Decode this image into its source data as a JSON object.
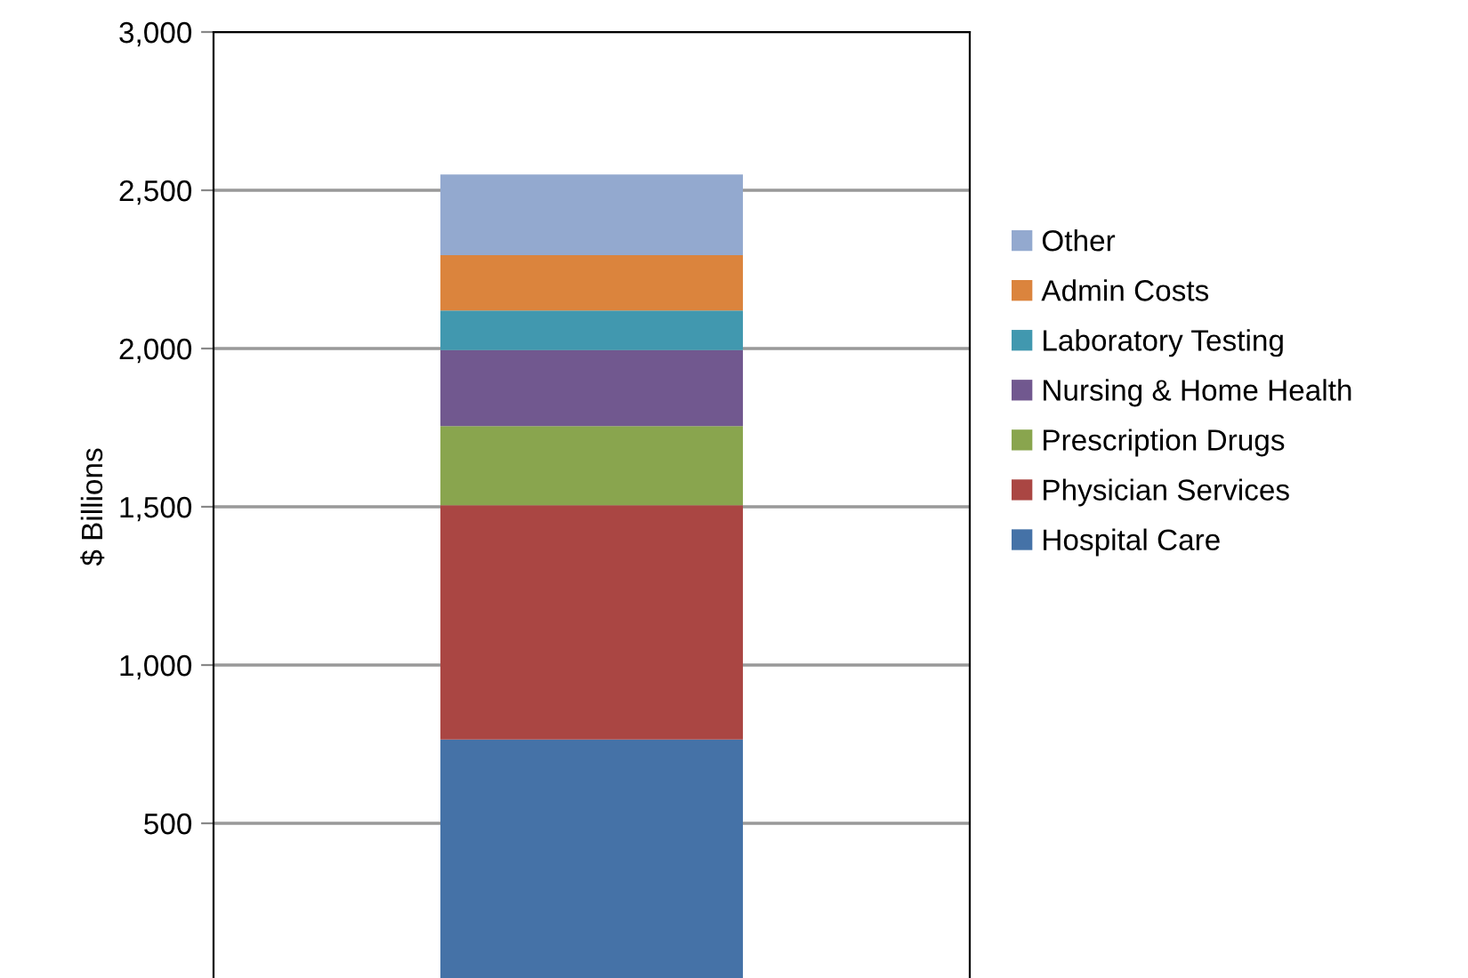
{
  "chart_data": {
    "type": "bar",
    "stacked": true,
    "ylabel": "$ Billions",
    "categories": [
      null
    ],
    "series": [
      {
        "name": "Hospital Care",
        "color": "#4572a7",
        "values": [
          765
        ]
      },
      {
        "name": "Physician Services",
        "color": "#aa4643",
        "values": [
          740
        ]
      },
      {
        "name": "Prescription Drugs",
        "color": "#89a54e",
        "values": [
          250
        ]
      },
      {
        "name": "Nursing & Home Health",
        "color": "#71588f",
        "values": [
          240
        ]
      },
      {
        "name": "Laboratory Testing",
        "color": "#4198af",
        "values": [
          125
        ]
      },
      {
        "name": "Admin Costs",
        "color": "#db843d",
        "values": [
          175
        ]
      },
      {
        "name": "Other",
        "color": "#93a9cf",
        "values": [
          255
        ]
      }
    ],
    "ylim": [
      0,
      3000
    ],
    "yticks": [
      {
        "value": 500,
        "label": "500"
      },
      {
        "value": 1000,
        "label": "1,000"
      },
      {
        "value": 1500,
        "label": "1,500"
      },
      {
        "value": 2000,
        "label": "2,000"
      },
      {
        "value": 2500,
        "label": "2,500"
      },
      {
        "value": 3000,
        "label": "3,000"
      }
    ],
    "grid": "y",
    "legend": "right"
  }
}
